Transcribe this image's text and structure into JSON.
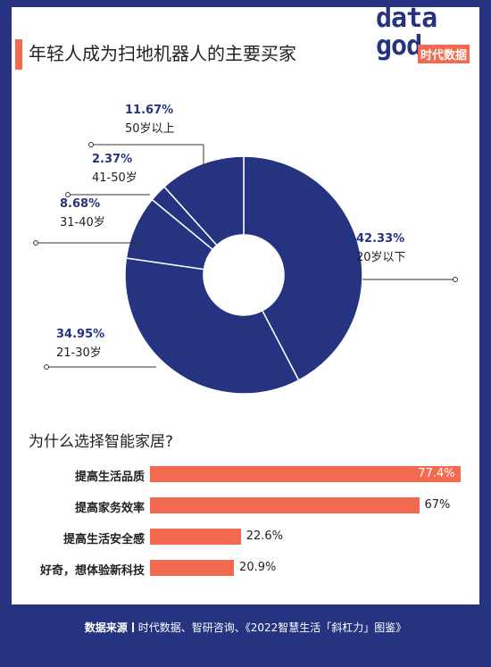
{
  "header": {
    "title": "年轻人成为扫地机器人的主要买家",
    "logo_text_top": "data",
    "logo_text_bottom": "god",
    "logo_badge": "时代数据"
  },
  "colors": {
    "navy": "#253380",
    "coral": "#f26a50",
    "label_pct": "#253380"
  },
  "chart_data": [
    {
      "type": "pie",
      "title": "年轻人成为扫地机器人的主要买家",
      "categories": [
        "20岁以下",
        "21-30岁",
        "31-40岁",
        "41-50岁",
        "50岁以上"
      ],
      "values": [
        42.33,
        34.95,
        8.68,
        2.37,
        11.67
      ],
      "value_labels": [
        "42.33%",
        "34.95%",
        "8.68%",
        "2.37%",
        "11.67%"
      ]
    },
    {
      "type": "bar",
      "title": "为什么选择智能家居?",
      "categories": [
        "提高生活品质",
        "提高家务效率",
        "提高生活安全感",
        "好奇，想体验新科技"
      ],
      "values": [
        77.4,
        67,
        22.6,
        20.9
      ],
      "value_labels": [
        "77.4%",
        "67%",
        "22.6%",
        "20.9%"
      ],
      "xlim": [
        0,
        80
      ]
    }
  ],
  "footer": {
    "source_label": "数据来源",
    "source_text": "时代数据、智研咨询、《2022智慧生活「斜杠力」图鉴》"
  }
}
